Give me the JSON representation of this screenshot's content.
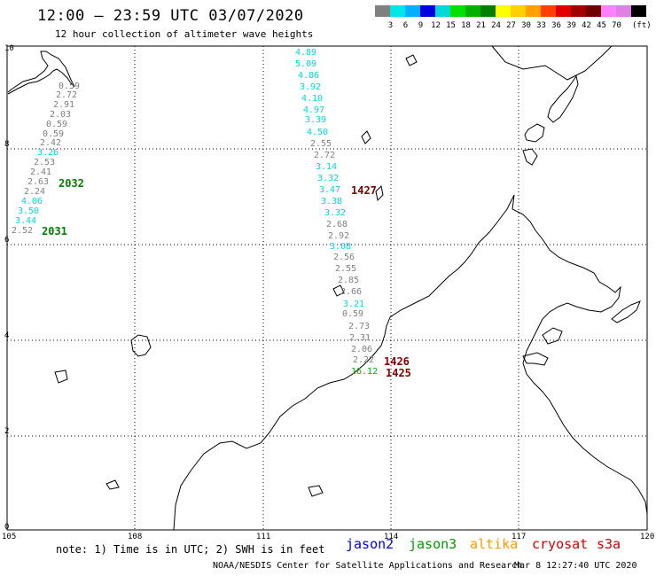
{
  "header": {
    "title": "12:00 – 23:59 UTC 03/07/2020",
    "subtitle": "12 hour collection of altimeter wave heights"
  },
  "scale": {
    "unit": "(ft)",
    "items": [
      {
        "label": "",
        "color": "#808080"
      },
      {
        "label": "3",
        "color": "#00e5e5"
      },
      {
        "label": "6",
        "color": "#00b0ff"
      },
      {
        "label": "9",
        "color": "#0000e0"
      },
      {
        "label": "12",
        "color": "#00d8d8"
      },
      {
        "label": "15",
        "color": "#00e000"
      },
      {
        "label": "18",
        "color": "#00b000"
      },
      {
        "label": "21",
        "color": "#008000"
      },
      {
        "label": "24",
        "color": "#ffff00"
      },
      {
        "label": "27",
        "color": "#ffd000"
      },
      {
        "label": "30",
        "color": "#ffa000"
      },
      {
        "label": "33",
        "color": "#ff4000"
      },
      {
        "label": "36",
        "color": "#e00000"
      },
      {
        "label": "39",
        "color": "#a00000"
      },
      {
        "label": "42",
        "color": "#700000"
      },
      {
        "label": "45",
        "color": "#ff80ff"
      },
      {
        "label": "70",
        "color": "#e080e0"
      },
      {
        "label": "",
        "color": "#000000"
      }
    ]
  },
  "axes": {
    "x_ticks": [
      "105",
      "108",
      "111",
      "114",
      "117",
      "120"
    ],
    "y_ticks": [
      "0",
      "2",
      "4",
      "6",
      "8",
      "10"
    ]
  },
  "tracks": [
    {
      "values": [
        {
          "v": "0.59",
          "c": "#808080"
        },
        {
          "v": "2.72",
          "c": "#808080"
        },
        {
          "v": "2.91",
          "c": "#808080"
        },
        {
          "v": "2.03",
          "c": "#808080"
        },
        {
          "v": "0.59",
          "c": "#808080"
        },
        {
          "v": "0.59",
          "c": "#808080"
        },
        {
          "v": "2.42",
          "c": "#808080"
        },
        {
          "v": "3.26",
          "c": "#00d8d8"
        },
        {
          "v": "2.53",
          "c": "#808080"
        },
        {
          "v": "2.41",
          "c": "#808080"
        },
        {
          "v": "2.63",
          "c": "#808080"
        },
        {
          "v": "2.24",
          "c": "#808080"
        },
        {
          "v": "4.06",
          "c": "#00d8d8"
        },
        {
          "v": "3.50",
          "c": "#00d8d8"
        },
        {
          "v": "3.44",
          "c": "#00d8d8"
        },
        {
          "v": "2.52",
          "c": "#808080"
        }
      ]
    },
    {
      "values": [
        {
          "v": "4.89",
          "c": "#00d8d8"
        },
        {
          "v": "5.09",
          "c": "#00d8d8"
        },
        {
          "v": "4.86",
          "c": "#00d8d8"
        },
        {
          "v": "3.92",
          "c": "#00d8d8"
        },
        {
          "v": "4.10",
          "c": "#00d8d8"
        },
        {
          "v": "4.97",
          "c": "#00d8d8"
        },
        {
          "v": "3.39",
          "c": "#00d8d8"
        },
        {
          "v": "4.50",
          "c": "#00d8d8"
        },
        {
          "v": "2.55",
          "c": "#808080"
        },
        {
          "v": "2.72",
          "c": "#808080"
        },
        {
          "v": "3.14",
          "c": "#00d8d8"
        },
        {
          "v": "3.32",
          "c": "#00d8d8"
        },
        {
          "v": "3.47",
          "c": "#00d8d8"
        },
        {
          "v": "3.38",
          "c": "#00d8d8"
        },
        {
          "v": "3.32",
          "c": "#00d8d8"
        },
        {
          "v": "2.68",
          "c": "#808080"
        },
        {
          "v": "2.92",
          "c": "#808080"
        },
        {
          "v": "3.08",
          "c": "#00d8d8"
        },
        {
          "v": "2.56",
          "c": "#808080"
        },
        {
          "v": "2.55",
          "c": "#808080"
        },
        {
          "v": "2.85",
          "c": "#808080"
        },
        {
          "v": "2.66",
          "c": "#808080"
        },
        {
          "v": "3.21",
          "c": "#00d8d8"
        },
        {
          "v": "0.59",
          "c": "#808080"
        },
        {
          "v": "2.73",
          "c": "#808080"
        },
        {
          "v": "2.31",
          "c": "#808080"
        },
        {
          "v": "2.06",
          "c": "#808080"
        },
        {
          "v": "2.22",
          "c": "#808080"
        },
        {
          "v": "16.12",
          "c": "#00b000"
        }
      ]
    }
  ],
  "passes": [
    {
      "label": "2032",
      "color": "#008000"
    },
    {
      "label": "2031",
      "color": "#008000"
    },
    {
      "label": "1427",
      "color": "#800000"
    },
    {
      "label": "1426",
      "color": "#800000"
    },
    {
      "label": "1425",
      "color": "#800000"
    }
  ],
  "footer": {
    "note": "note: 1) Time is in UTC; 2) SWH is in feet",
    "satellites": [
      {
        "name": "jason2",
        "color": "#0000cc"
      },
      {
        "name": "jason3",
        "color": "#009900"
      },
      {
        "name": "altika",
        "color": "#ff9900"
      },
      {
        "name": "cryosat",
        "color": "#dd0000"
      },
      {
        "name": "s3a",
        "color": "#cc0000"
      }
    ],
    "credit": "NOAA/NESDIS Center for Satellite Applications and Research",
    "timestamp": "Mar  8 12:27:40 UTC 2020"
  }
}
